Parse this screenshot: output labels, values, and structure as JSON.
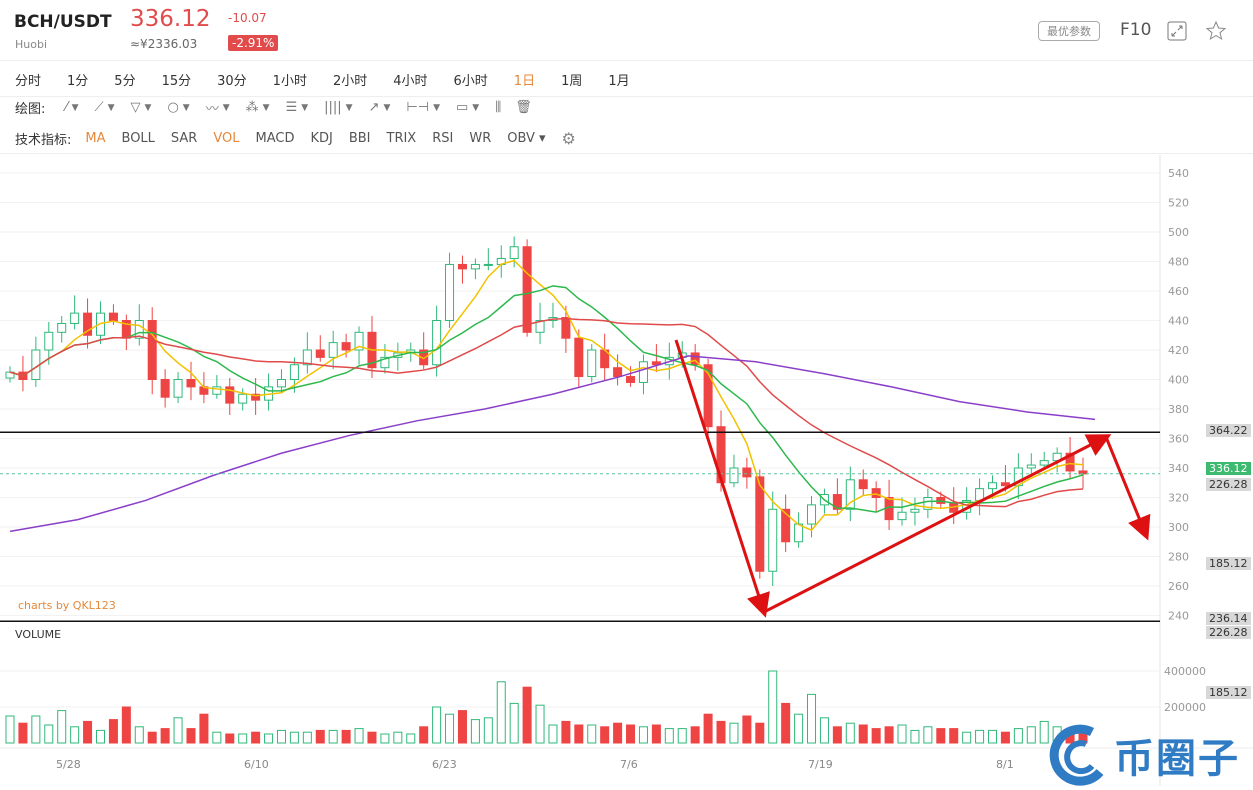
{
  "header": {
    "pair": "BCH/USDT",
    "exchange": "Huobi",
    "price": "336.12",
    "cny": "≈¥2336.03",
    "change": "-10.07",
    "change_pct": "-2.91%",
    "best_params": "最优参数",
    "f10": "F10"
  },
  "intervals": [
    "分时",
    "1分",
    "5分",
    "15分",
    "30分",
    "1小时",
    "2小时",
    "4小时",
    "6小时",
    "1日",
    "1周",
    "1月"
  ],
  "active_interval": "1日",
  "draw": {
    "label": "绘图:",
    "tools": [
      "line-icon",
      "segment-icon",
      "triangle-icon",
      "circle-icon",
      "wave-icon",
      "pattern-icon",
      "fib-icon",
      "channel-icon",
      "arrow-icon",
      "range-icon",
      "note-icon"
    ]
  },
  "indicators": {
    "label": "技术指标:",
    "items": [
      "MA",
      "BOLL",
      "SAR",
      "VOL",
      "MACD",
      "KDJ",
      "BBI",
      "TRIX",
      "RSI",
      "WR",
      "OBV"
    ],
    "active": [
      "MA",
      "VOL"
    ]
  },
  "colors": {
    "up": "#2fb87a",
    "down": "#ee4444",
    "ma5": "#f2c200",
    "ma10": "#2db84d",
    "ma20": "#e04a4a",
    "ma60": "#8a3fc9",
    "annotation": "#dd1111"
  },
  "chart_data": {
    "type": "candlestick",
    "price_axis": {
      "min": 240,
      "max": 540,
      "ticks": [
        540,
        520,
        500,
        480,
        460,
        440,
        420,
        400,
        380,
        360,
        340,
        320,
        300,
        280,
        260,
        240
      ]
    },
    "volume_axis": {
      "ticks": [
        "400000",
        "200000"
      ]
    },
    "dates": [
      "5/28",
      "6/10",
      "6/23",
      "7/6",
      "7/19",
      "8/1"
    ],
    "closes": [
      405,
      400,
      420,
      432,
      438,
      445,
      430,
      445,
      440,
      428,
      440,
      400,
      388,
      400,
      395,
      390,
      395,
      384,
      390,
      386,
      395,
      400,
      410,
      420,
      415,
      425,
      420,
      432,
      408,
      415,
      418,
      420,
      410,
      440,
      478,
      475,
      478,
      478,
      482,
      490,
      432,
      440,
      442,
      428,
      402,
      420,
      408,
      402,
      398,
      412,
      410,
      415,
      418,
      410,
      368,
      330,
      340,
      334,
      270,
      312,
      290,
      302,
      315,
      322,
      312,
      332,
      326,
      320,
      305,
      310,
      312,
      320,
      316,
      310,
      318,
      326,
      330,
      328,
      340,
      342,
      345,
      350,
      338,
      336
    ],
    "volumes": [
      150000,
      110000,
      150000,
      100000,
      180000,
      90000,
      120000,
      70000,
      130000,
      200000,
      90000,
      60000,
      80000,
      140000,
      80000,
      160000,
      60000,
      50000,
      50000,
      60000,
      50000,
      70000,
      60000,
      60000,
      70000,
      70000,
      70000,
      80000,
      60000,
      50000,
      60000,
      50000,
      90000,
      200000,
      160000,
      180000,
      130000,
      140000,
      340000,
      220000,
      310000,
      210000,
      100000,
      120000,
      100000,
      100000,
      90000,
      110000,
      100000,
      90000,
      100000,
      80000,
      80000,
      90000,
      160000,
      120000,
      110000,
      150000,
      110000,
      400000,
      220000,
      160000,
      270000,
      140000,
      90000,
      110000,
      100000,
      80000,
      90000,
      100000,
      70000,
      90000,
      80000,
      80000,
      60000,
      70000,
      70000,
      60000,
      80000,
      90000,
      120000,
      90000,
      70000,
      60000
    ],
    "ma60": [
      297,
      305,
      318,
      335,
      350,
      362,
      372,
      380,
      390,
      402,
      416,
      412,
      404,
      395,
      385,
      378,
      373
    ],
    "levels": [
      {
        "label": "364.22",
        "value": 364.22
      },
      {
        "label": "236.14",
        "value": 236.14
      }
    ],
    "tags": {
      "last": "336.12",
      "t1": "226.28",
      "t2": "185.12",
      "t3": "236.14",
      "t4": "226.28",
      "t5": "185.12"
    }
  },
  "credit": "charts by QKL123",
  "volume_label": "VOLUME",
  "watermark": {
    "text": "币圈子",
    "url": "www.bqz..."
  }
}
